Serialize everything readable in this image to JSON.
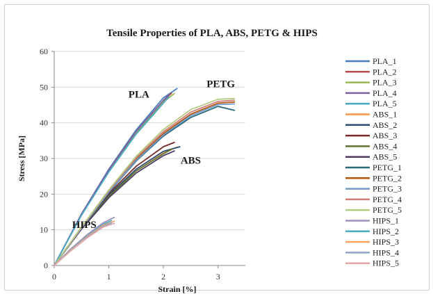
{
  "chart_data": {
    "type": "line",
    "title": "Tensile Properties of PLA, ABS, PETG & HIPS",
    "xlabel": "Strain [%]",
    "ylabel": "Stress [MPa]",
    "xlim": [
      0,
      3.5
    ],
    "ylim": [
      0,
      60
    ],
    "x_ticks": [
      "0",
      "1",
      "2",
      "3"
    ],
    "y_ticks": [
      "0",
      "10",
      "20",
      "30",
      "40",
      "50",
      "60"
    ],
    "grid": "horizontal",
    "legend_position": "right",
    "annotations": [
      {
        "text": "PLA",
        "x": 1.55,
        "y": 47
      },
      {
        "text": "PETG",
        "x": 3.05,
        "y": 50
      },
      {
        "text": "ABS",
        "x": 2.5,
        "y": 28.5
      },
      {
        "text": "HIPS",
        "x": 0.55,
        "y": 10.5
      }
    ],
    "series": [
      {
        "name": "PLA_1",
        "color": "#4a7ebb",
        "x": [
          0,
          0.5,
          1.0,
          1.5,
          2.0,
          2.25
        ],
        "y": [
          0,
          14.5,
          27,
          38,
          47,
          49.6
        ]
      },
      {
        "name": "PLA_2",
        "color": "#be4b48",
        "x": [
          0,
          0.5,
          1.0,
          1.5,
          2.0,
          2.15
        ],
        "y": [
          0,
          14.3,
          26.6,
          37.4,
          46.2,
          48.3
        ]
      },
      {
        "name": "PLA_3",
        "color": "#98b954",
        "x": [
          0,
          0.5,
          1.0,
          1.5,
          2.0,
          2.2
        ],
        "y": [
          0,
          14.2,
          26.4,
          37.1,
          45.8,
          48.2
        ]
      },
      {
        "name": "PLA_4",
        "color": "#7d60a0",
        "x": [
          0,
          0.5,
          1.0,
          1.5,
          2.0,
          2.1
        ],
        "y": [
          0,
          14.4,
          26.8,
          37.6,
          46.3,
          47.8
        ]
      },
      {
        "name": "PLA_5",
        "color": "#46aac5",
        "x": [
          0,
          0.5,
          1.0,
          1.5,
          2.0,
          2.1
        ],
        "y": [
          0,
          14.1,
          26.2,
          36.8,
          45.5,
          47.3
        ]
      },
      {
        "name": "ABS_1",
        "color": "#f79646",
        "x": [
          0,
          0.5,
          1.0,
          1.5,
          2.0,
          2.25
        ],
        "y": [
          0,
          10.5,
          19.5,
          26.5,
          31.5,
          33.2
        ]
      },
      {
        "name": "ABS_2",
        "color": "#2c4d75",
        "x": [
          0,
          0.5,
          1.0,
          1.5,
          2.0,
          2.3
        ],
        "y": [
          0,
          10.6,
          19.8,
          27,
          32,
          33.3
        ]
      },
      {
        "name": "ABS_3",
        "color": "#772c2a",
        "x": [
          0,
          0.5,
          1.0,
          1.5,
          2.0,
          2.2
        ],
        "y": [
          0,
          10.8,
          20.2,
          27.8,
          33.3,
          34.5
        ]
      },
      {
        "name": "ABS_4",
        "color": "#5f7530",
        "x": [
          0,
          0.5,
          1.0,
          1.5,
          2.0,
          2.15
        ],
        "y": [
          0,
          10.4,
          19.4,
          26.5,
          31.3,
          32.6
        ]
      },
      {
        "name": "ABS_5",
        "color": "#4d3b62",
        "x": [
          0,
          0.5,
          1.0,
          1.5,
          2.0,
          2.2
        ],
        "y": [
          0,
          10.2,
          19,
          25.9,
          30.8,
          32.1
        ]
      },
      {
        "name": "PETG_1",
        "color": "#276a7c",
        "x": [
          0,
          0.5,
          1.0,
          1.5,
          2.0,
          2.5,
          3.0,
          3.3
        ],
        "y": [
          0,
          10.5,
          20.5,
          29.3,
          36.3,
          41.5,
          44.6,
          43.5
        ]
      },
      {
        "name": "PETG_2",
        "color": "#b65708",
        "x": [
          0,
          0.5,
          1.0,
          1.5,
          2.0,
          2.5,
          3.0,
          3.3
        ],
        "y": [
          0,
          10.6,
          20.8,
          29.8,
          37,
          42.4,
          45.5,
          45.8
        ]
      },
      {
        "name": "PETG_3",
        "color": "#729aca",
        "x": [
          0,
          0.5,
          1.0,
          1.5,
          2.0,
          2.5,
          3.0,
          3.3
        ],
        "y": [
          0,
          10.5,
          20.6,
          29.5,
          36.6,
          42,
          45.1,
          45.3
        ]
      },
      {
        "name": "PETG_4",
        "color": "#d07d7a",
        "x": [
          0,
          0.5,
          1.0,
          1.5,
          2.0,
          2.5,
          3.0,
          3.3
        ],
        "y": [
          0,
          10.7,
          21,
          30.2,
          37.5,
          43,
          46,
          46.3
        ]
      },
      {
        "name": "PETG_5",
        "color": "#b3cc82",
        "x": [
          0,
          0.5,
          1.0,
          1.5,
          2.0,
          2.5,
          3.0,
          3.3
        ],
        "y": [
          0,
          10.8,
          21.2,
          30.6,
          38.1,
          43.7,
          46.6,
          46.8
        ]
      },
      {
        "name": "HIPS_1",
        "color": "#a390bd",
        "x": [
          0,
          0.3,
          0.6,
          0.9,
          1.1
        ],
        "y": [
          0,
          4.6,
          8.6,
          12,
          13.5
        ]
      },
      {
        "name": "HIPS_2",
        "color": "#4bacc6",
        "x": [
          0,
          0.3,
          0.6,
          0.9,
          1.05
        ],
        "y": [
          0,
          4.4,
          8.3,
          11.6,
          12.6
        ]
      },
      {
        "name": "HIPS_3",
        "color": "#f9a665",
        "x": [
          0,
          0.3,
          0.6,
          0.9,
          1.1
        ],
        "y": [
          0,
          4.3,
          8.1,
          11.3,
          12.4
        ]
      },
      {
        "name": "HIPS_4",
        "color": "#8fa6c8",
        "x": [
          0,
          0.3,
          0.6,
          0.9,
          1.05
        ],
        "y": [
          0,
          4.2,
          7.9,
          11,
          12
        ]
      },
      {
        "name": "HIPS_5",
        "color": "#e3a7a5",
        "x": [
          0,
          0.3,
          0.6,
          0.9,
          1.1
        ],
        "y": [
          0,
          4.1,
          7.7,
          10.8,
          11.8
        ]
      }
    ]
  }
}
